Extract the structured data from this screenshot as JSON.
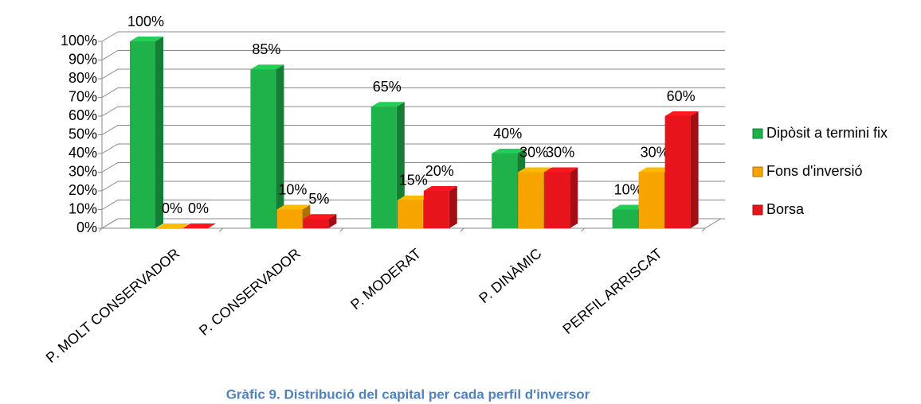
{
  "chart_data": {
    "type": "bar3d",
    "categories": [
      "P. MOLT CONSERVADOR",
      "P. CONSERVADOR",
      "P. MODERAT",
      "P. DINÀMIC",
      "PERFIL ARRISCAT"
    ],
    "series": [
      {
        "name": "Dipòsit a termini fix",
        "color": "#1fb24a",
        "values": [
          100,
          85,
          65,
          40,
          10
        ],
        "value_labels": [
          "100%",
          "85%",
          "65%",
          "40%",
          "10%"
        ]
      },
      {
        "name": "Fons d'inversió",
        "color": "#f7a300",
        "values": [
          0,
          10,
          15,
          30,
          30
        ],
        "value_labels": [
          "0%",
          "10%",
          "15%",
          "30%",
          "30%"
        ]
      },
      {
        "name": "Borsa",
        "color": "#e8141b",
        "values": [
          0,
          5,
          20,
          30,
          60
        ],
        "value_labels": [
          "0%",
          "5%",
          "20%",
          "30%",
          "60%"
        ]
      }
    ],
    "ylim": [
      0,
      100
    ],
    "yticks": [
      {
        "value": 0,
        "label": "0%"
      },
      {
        "value": 10,
        "label": "10%"
      },
      {
        "value": 20,
        "label": "20%"
      },
      {
        "value": 30,
        "label": "30%"
      },
      {
        "value": 40,
        "label": "40%"
      },
      {
        "value": 50,
        "label": "50%"
      },
      {
        "value": 60,
        "label": "60%"
      },
      {
        "value": 70,
        "label": "70%"
      },
      {
        "value": 80,
        "label": "80%"
      },
      {
        "value": 90,
        "label": "90%"
      },
      {
        "value": 100,
        "label": "100%"
      }
    ],
    "grid": true,
    "legend": "right",
    "caption": "Gràfic 9. Distribució del capital per cada perfil d'inversor"
  }
}
